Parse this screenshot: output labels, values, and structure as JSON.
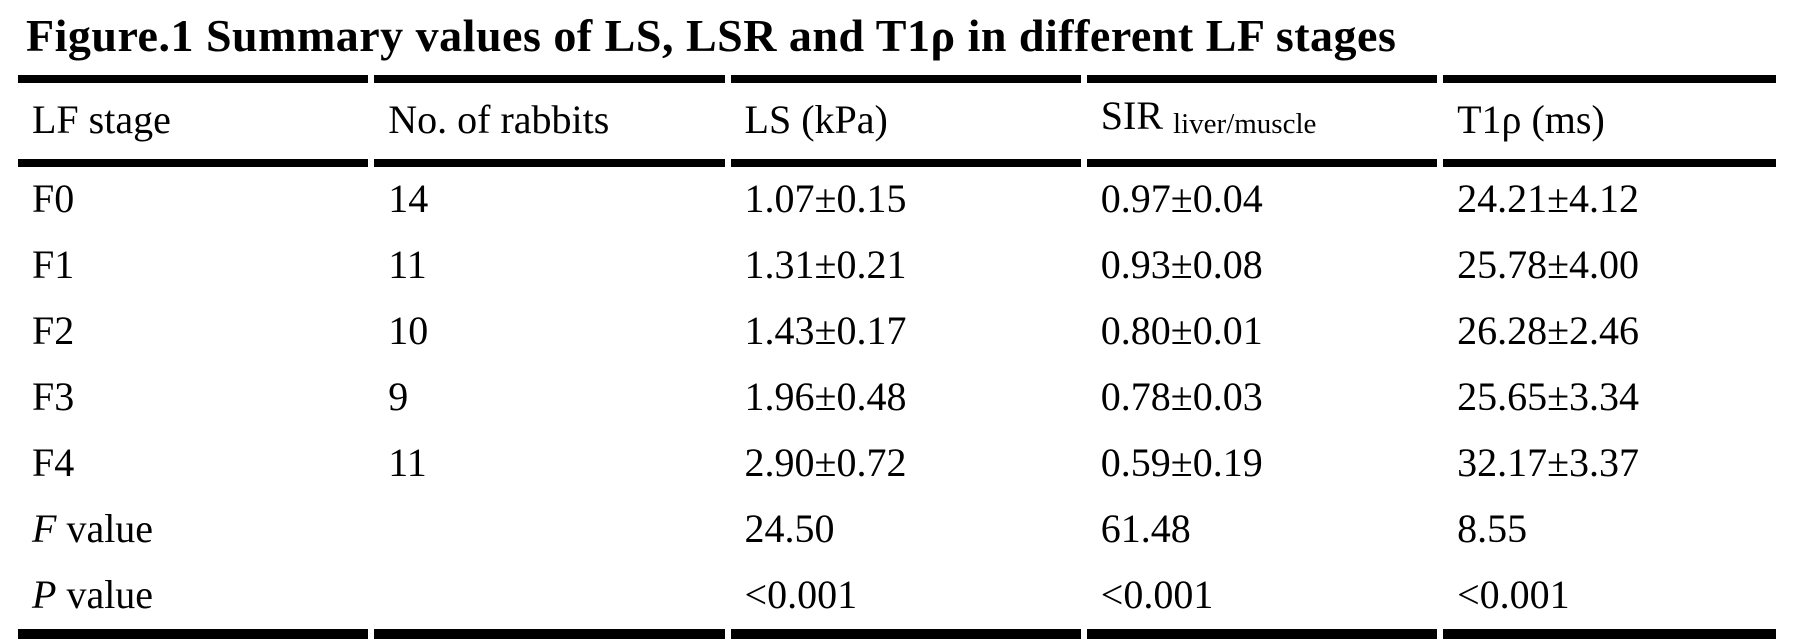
{
  "title": "Figure.1 Summary values of LS, LSR and T1ρ in different LF stages",
  "colors": {
    "text": "#000000",
    "background": "#ffffff",
    "rule": "#000000"
  },
  "table": {
    "columns": [
      {
        "label": "LF stage",
        "subscript": ""
      },
      {
        "label": "No. of rabbits",
        "subscript": ""
      },
      {
        "label": "LS (kPa)",
        "subscript": ""
      },
      {
        "label": "SIR ",
        "subscript": "liver/muscle"
      },
      {
        "label": "T1ρ (ms)",
        "subscript": ""
      }
    ],
    "rows": [
      {
        "stage_italic": "",
        "stage": "F0",
        "n": "14",
        "ls": "1.07±0.15",
        "sir": "0.97±0.04",
        "t1rho": "24.21±4.12"
      },
      {
        "stage_italic": "",
        "stage": "F1",
        "n": "11",
        "ls": "1.31±0.21",
        "sir": "0.93±0.08",
        "t1rho": "25.78±4.00"
      },
      {
        "stage_italic": "",
        "stage": "F2",
        "n": "10",
        "ls": "1.43±0.17",
        "sir": "0.80±0.01",
        "t1rho": "26.28±2.46"
      },
      {
        "stage_italic": "",
        "stage": "F3",
        "n": "9",
        "ls": "1.96±0.48",
        "sir": "0.78±0.03",
        "t1rho": "25.65±3.34"
      },
      {
        "stage_italic": "",
        "stage": "F4",
        "n": "11",
        "ls": "2.90±0.72",
        "sir": "0.59±0.19",
        "t1rho": "32.17±3.37"
      },
      {
        "stage_italic": "F",
        "stage": " value",
        "n": "",
        "ls": "24.50",
        "sir": "61.48",
        "t1rho": "8.55"
      },
      {
        "stage_italic": "P",
        "stage": " value",
        "n": "",
        "ls": "<0.001",
        "sir": "<0.001",
        "t1rho": "<0.001"
      }
    ]
  },
  "chart_data": {
    "type": "table",
    "title": "Figure.1 Summary values of LS, LSR and T1ρ in different LF stages",
    "columns": [
      "LF stage",
      "No. of rabbits",
      "LS (kPa)",
      "SIR liver/muscle",
      "T1ρ (ms)"
    ],
    "rows": [
      [
        "F0",
        "14",
        "1.07±0.15",
        "0.97±0.04",
        "24.21±4.12"
      ],
      [
        "F1",
        "11",
        "1.31±0.21",
        "0.93±0.08",
        "25.78±4.00"
      ],
      [
        "F2",
        "10",
        "1.43±0.17",
        "0.80±0.01",
        "26.28±2.46"
      ],
      [
        "F3",
        "9",
        "1.96±0.48",
        "0.78±0.03",
        "25.65±3.34"
      ],
      [
        "F4",
        "11",
        "2.90±0.72",
        "0.59±0.19",
        "32.17±3.37"
      ],
      [
        "F value",
        "",
        "24.50",
        "61.48",
        "8.55"
      ],
      [
        "P value",
        "",
        "<0.001",
        "<0.001",
        "<0.001"
      ]
    ]
  }
}
